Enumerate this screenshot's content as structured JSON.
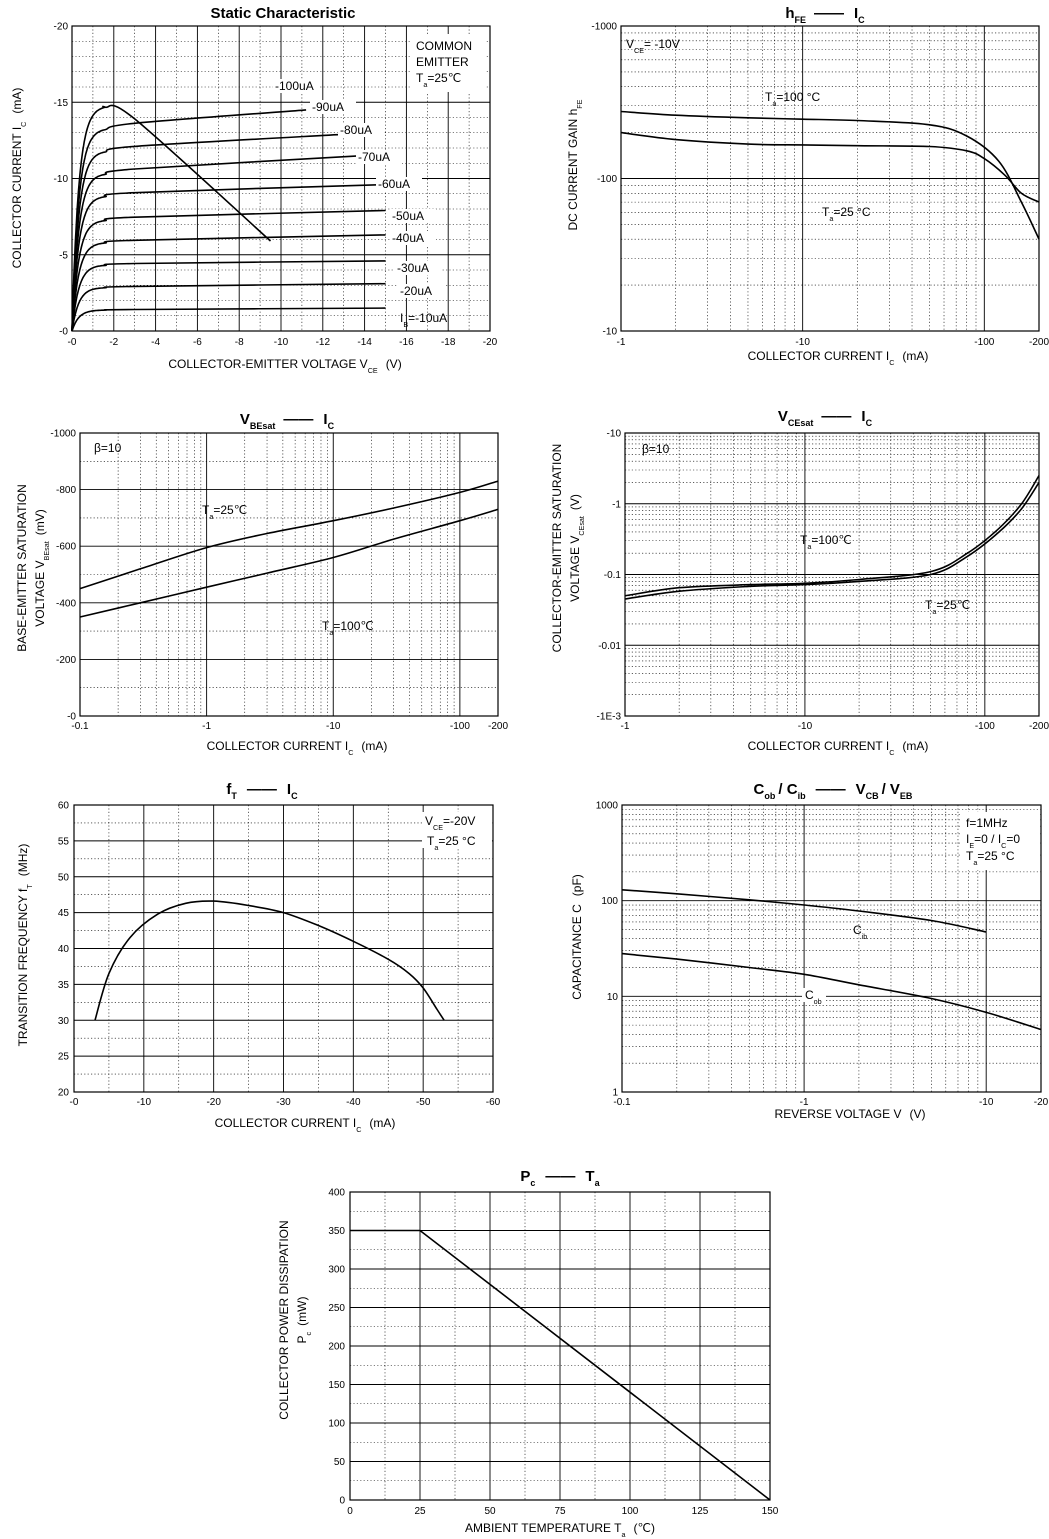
{
  "chart_data": [
    {
      "id": "static",
      "type": "line",
      "title": "Static Characteristic",
      "xlabel": "COLLECTOR-EMITTER VOLTAGE  V",
      "xlabel_sub": "CE",
      "xlabel_unit": "(V)",
      "ylabel": "COLLECTOR CURRENT   I",
      "ylabel_sub": "C",
      "ylabel_unit": "(mA)",
      "xlim": [
        0,
        -20
      ],
      "ylim": [
        0,
        -20
      ],
      "x_ticks": [
        "-0",
        "-2",
        "-4",
        "-6",
        "-8",
        "-10",
        "-12",
        "-14",
        "-16",
        "-18",
        "-20"
      ],
      "y_ticks": [
        "-0",
        "-5",
        "-10",
        "-15",
        "-20"
      ],
      "notes": [
        "COMMON",
        "EMITTER",
        "T",
        "a",
        "=25℃"
      ],
      "series": [
        {
          "name": "-100uA",
          "ic": -15.0,
          "end": -5.9
        },
        {
          "name": "-90uA",
          "ic": -13.5,
          "end": -14.5
        },
        {
          "name": "-80uA",
          "ic": -12.0,
          "end": -12.9
        },
        {
          "name": "-70uA",
          "ic": -10.5,
          "end": -11.5
        },
        {
          "name": "-60uA",
          "ic": -9.0,
          "end": -9.6
        },
        {
          "name": "-50uA",
          "ic": -7.4,
          "end": -7.9
        },
        {
          "name": "-40uA",
          "ic": -5.9,
          "end": -6.3
        },
        {
          "name": "-30uA",
          "ic": -4.4,
          "end": -4.6
        },
        {
          "name": "-20uA",
          "ic": -2.9,
          "end": -3.1
        },
        {
          "name": "I",
          "name_sub": "B",
          "name_rest": "=-10uA",
          "ic": -1.4,
          "end": -1.5
        }
      ]
    },
    {
      "id": "hfe",
      "type": "line",
      "title": "h",
      "title_sub": "FE",
      "title_x": "I",
      "title_x_sub": "C",
      "xlabel": "COLLECTOR CURRENT   I",
      "xlabel_sub": "C",
      "xlabel_unit": "(mA)",
      "ylabel": "DC CURRENT GAIN   h",
      "ylabel_sub": "FE",
      "x_scale": "log",
      "y_scale": "log",
      "xlim": [
        -1,
        -200
      ],
      "ylim": [
        -10,
        -1000
      ],
      "x_ticks": [
        "-1",
        "-10",
        "-100",
        "-200"
      ],
      "y_ticks": [
        "-10",
        "-100",
        "-1000"
      ],
      "notes": [
        "V",
        "CE",
        "= -10V"
      ],
      "series": [
        {
          "name": "T",
          "name_sub": "a",
          "name_rest": "=100 °C",
          "x": [
            -1,
            -2,
            -5,
            -10,
            -20,
            -50,
            -80,
            -120,
            -160,
            -200
          ],
          "y": [
            -275,
            -260,
            -250,
            -245,
            -240,
            -225,
            -190,
            -130,
            -70,
            -40
          ]
        },
        {
          "name": "T",
          "name_sub": "a",
          "name_rest": "=25 °C",
          "x": [
            -1,
            -2,
            -5,
            -10,
            -20,
            -50,
            -80,
            -100,
            -130,
            -160,
            -200
          ],
          "y": [
            -200,
            -180,
            -168,
            -166,
            -164,
            -162,
            -152,
            -135,
            -105,
            -80,
            -70
          ]
        }
      ]
    },
    {
      "id": "vbesat",
      "type": "line",
      "title": "V",
      "title_sub": "BEsat",
      "title_x": "I",
      "title_x_sub": "C",
      "xlabel": "COLLECTOR CURRENT   I",
      "xlabel_sub": "C",
      "xlabel_unit": "(mA)",
      "ylabel_line1": "BASE-EMITTER SATURATION",
      "ylabel_line2": "VOLTAGE   V",
      "ylabel_sub": "BEsat",
      "ylabel_unit": "(mV)",
      "x_scale": "log",
      "xlim": [
        -0.1,
        -200
      ],
      "ylim": [
        0,
        -1000
      ],
      "x_ticks": [
        "-0.1",
        "-1",
        "-10",
        "-100",
        "-200"
      ],
      "y_ticks": [
        "-0",
        "-200",
        "-400",
        "-600",
        "-800",
        "-1000"
      ],
      "notes": [
        "β=10"
      ],
      "series": [
        {
          "name": "T",
          "name_sub": "a",
          "name_rest": "=25℃",
          "x": [
            -0.1,
            -0.3,
            -1,
            -3,
            -10,
            -30,
            -100,
            -200
          ],
          "y": [
            -450,
            -520,
            -595,
            -645,
            -690,
            -735,
            -790,
            -830
          ]
        },
        {
          "name": "T",
          "name_sub": "a",
          "name_rest": "=100℃",
          "x": [
            -0.1,
            -0.3,
            -1,
            -3,
            -10,
            -30,
            -100,
            -200
          ],
          "y": [
            -350,
            -400,
            -455,
            -505,
            -560,
            -625,
            -690,
            -730
          ]
        }
      ]
    },
    {
      "id": "vcesat",
      "type": "line",
      "title": "V",
      "title_sub": "CEsat",
      "title_x": "I",
      "title_x_sub": "C",
      "xlabel": "COLLECTOR CURRENT   I",
      "xlabel_sub": "C",
      "xlabel_unit": "(mA)",
      "ylabel_line1": "COLLECTOR-EMITTER SATURATION",
      "ylabel_line2": "VOLTAGE   V",
      "ylabel_sub": "CEsat",
      "ylabel_unit": "(V)",
      "x_scale": "log",
      "y_scale": "log",
      "xlim": [
        -1,
        -200
      ],
      "ylim": [
        -0.001,
        -10
      ],
      "x_ticks": [
        "-1",
        "-10",
        "-100",
        "-200"
      ],
      "y_ticks": [
        "-1E-3",
        "-0.01",
        "-0.1",
        "-1",
        "-10"
      ],
      "notes": [
        "β=10"
      ],
      "series": [
        {
          "name": "T",
          "name_sub": "a",
          "name_rest": "=100℃",
          "x": [
            -1,
            -2,
            -5,
            -10,
            -20,
            -50,
            -80,
            -120,
            -160,
            -200
          ],
          "y": [
            -0.05,
            -0.065,
            -0.072,
            -0.075,
            -0.085,
            -0.11,
            -0.2,
            -0.45,
            -1.0,
            -2.5
          ]
        },
        {
          "name": "T",
          "name_sub": "a",
          "name_rest": "=25℃",
          "x": [
            -1,
            -2,
            -5,
            -10,
            -20,
            -50,
            -80,
            -120,
            -160,
            -200
          ],
          "y": [
            -0.045,
            -0.058,
            -0.068,
            -0.072,
            -0.08,
            -0.1,
            -0.18,
            -0.4,
            -0.85,
            -2.0
          ]
        }
      ]
    },
    {
      "id": "ft",
      "type": "line",
      "title": "f",
      "title_sub": "T",
      "title_x": "I",
      "title_x_sub": "C",
      "xlabel": "COLLECTOR CURRENT   I",
      "xlabel_sub": "C",
      "xlabel_unit": "(mA)",
      "ylabel": "TRANSITION FREQUENCY   f",
      "ylabel_sub": "T",
      "ylabel_unit": "(MHz)",
      "xlim": [
        0,
        -60
      ],
      "ylim": [
        20,
        60
      ],
      "x_ticks": [
        "-0",
        "-10",
        "-20",
        "-30",
        "-40",
        "-50",
        "-60"
      ],
      "y_ticks": [
        "20",
        "25",
        "30",
        "35",
        "40",
        "45",
        "50",
        "55",
        "60"
      ],
      "notes": [
        "V",
        "CE",
        "=-20V",
        "T",
        "a",
        "=25 °C"
      ],
      "series": [
        {
          "name": "",
          "x": [
            -3,
            -5,
            -8,
            -12,
            -16,
            -20,
            -25,
            -30,
            -35,
            -40,
            -45,
            -48,
            -50,
            -52,
            -53
          ],
          "y": [
            30,
            36.5,
            41.5,
            44.8,
            46.3,
            46.6,
            46,
            45,
            43.2,
            41,
            38.5,
            36.5,
            34.5,
            31.5,
            30
          ]
        }
      ]
    },
    {
      "id": "cap",
      "type": "line",
      "title": "C",
      "title_sub": "ob",
      "title_mid": "/ C",
      "title_sub2": "ib",
      "title_x": "V",
      "title_x_sub": "CB",
      "title_x_mid": "/ V",
      "title_x_sub2": "EB",
      "xlabel": "REVERSE  VOLTAGE   V",
      "xlabel_unit": "(V)",
      "ylabel": "CAPACITANCE   C",
      "ylabel_unit": "(pF)",
      "x_scale": "log",
      "y_scale": "log",
      "xlim": [
        -0.1,
        -20
      ],
      "ylim": [
        1,
        1000
      ],
      "x_ticks": [
        "-0.1",
        "-1",
        "-10",
        "-20"
      ],
      "y_ticks": [
        "1",
        "10",
        "100",
        "1000"
      ],
      "notes": [
        "f=1MHz",
        "I",
        "E",
        "=0 / I",
        "C",
        "=0",
        "T",
        "a",
        "=25 °C"
      ],
      "series": [
        {
          "name": "C",
          "name_sub": "ib",
          "x": [
            -0.1,
            -0.2,
            -0.5,
            -1,
            -2,
            -5,
            -10
          ],
          "y": [
            130,
            118,
            102,
            90,
            78,
            62,
            47
          ]
        },
        {
          "name": "C",
          "name_sub": "ob",
          "x": [
            -0.1,
            -0.2,
            -0.5,
            -1,
            -2,
            -5,
            -10,
            -20
          ],
          "y": [
            28,
            24.5,
            20,
            17,
            13.2,
            9.5,
            6.8,
            4.5
          ]
        }
      ]
    },
    {
      "id": "pc",
      "type": "line",
      "title": "P",
      "title_sub": "c",
      "title_x": "T",
      "title_x_sub": "a",
      "xlabel": "AMBIENT TEMPERATURE   T",
      "xlabel_sub": "a",
      "xlabel_unit": "(℃)",
      "ylabel_line1": "COLLECTOR POWER DISSIPATION",
      "ylabel_line2": "P",
      "ylabel_sub": "c",
      "ylabel_unit": "(mW)",
      "xlim": [
        0,
        150
      ],
      "ylim": [
        0,
        400
      ],
      "x_ticks": [
        "0",
        "25",
        "50",
        "75",
        "100",
        "125",
        "150"
      ],
      "y_ticks": [
        "0",
        "50",
        "100",
        "150",
        "200",
        "250",
        "300",
        "350",
        "400"
      ],
      "series": [
        {
          "name": "",
          "x": [
            0,
            25,
            150
          ],
          "y": [
            350,
            350,
            0
          ]
        }
      ]
    }
  ]
}
